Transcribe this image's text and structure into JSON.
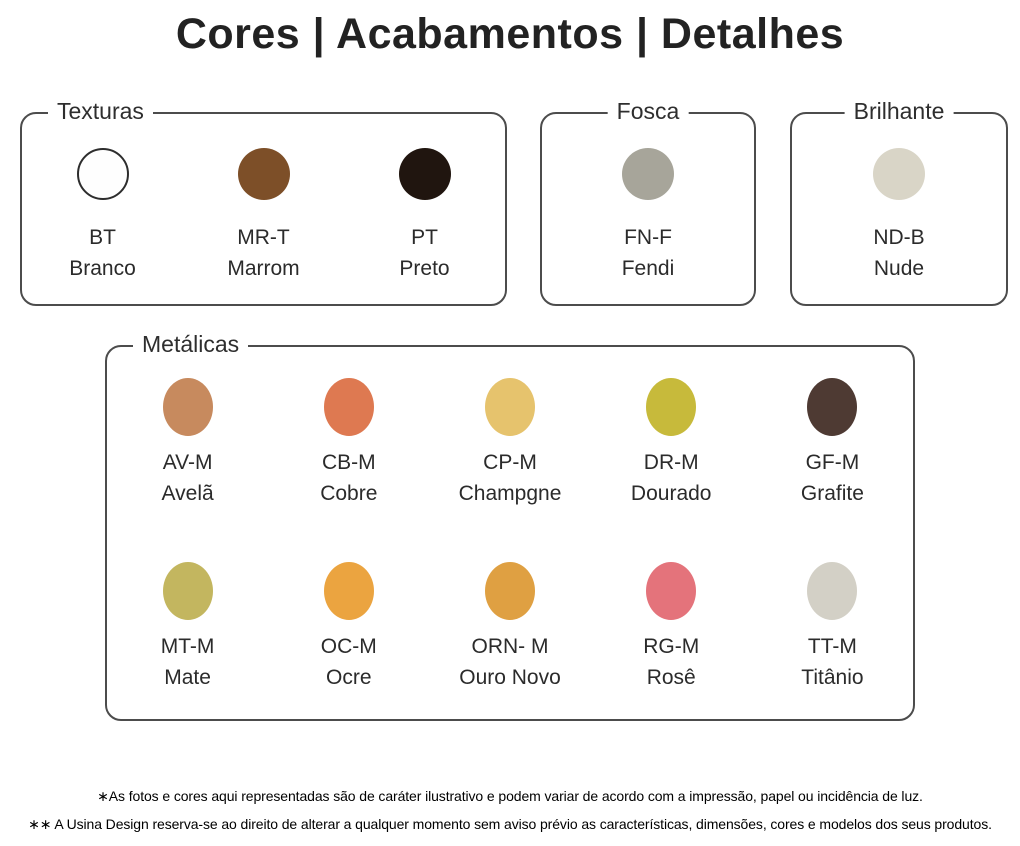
{
  "title": "Cores | Acabamentos | Detalhes",
  "sections": {
    "texturas": {
      "label": "Texturas",
      "swatches": [
        {
          "code": "BT",
          "name": "Branco",
          "color": "#fefefe",
          "outlined": true
        },
        {
          "code": "MR-T",
          "name": "Marrom",
          "color": "#7d4f28"
        },
        {
          "code": "PT",
          "name": "Preto",
          "color": "#20150f"
        }
      ]
    },
    "fosca": {
      "label": "Fosca",
      "swatches": [
        {
          "code": "FN-F",
          "name": "Fendi",
          "color": "#a7a59a"
        }
      ]
    },
    "brilhante": {
      "label": "Brilhante",
      "swatches": [
        {
          "code": "ND-B",
          "name": "Nude",
          "color": "#d9d5c7"
        }
      ]
    },
    "metalicas": {
      "label": "Metálicas",
      "rows": [
        [
          {
            "code": "AV-M",
            "name": "Avelã",
            "color": "#c78a5e"
          },
          {
            "code": "CB-M",
            "name": "Cobre",
            "color": "#de7951"
          },
          {
            "code": "CP-M",
            "name": "Champgne",
            "color": "#e6c36d"
          },
          {
            "code": "DR-M",
            "name": "Dourado",
            "color": "#c7ba3b"
          },
          {
            "code": "GF-M",
            "name": "Grafite",
            "color": "#4e3a33"
          }
        ],
        [
          {
            "code": "MT-M",
            "name": "Mate",
            "color": "#c3b65f"
          },
          {
            "code": "OC-M",
            "name": "Ocre",
            "color": "#eba440"
          },
          {
            "code": "ORN- M",
            "name": "Ouro Novo",
            "color": "#dfa042"
          },
          {
            "code": "RG-M",
            "name": "Rosê",
            "color": "#e4737b"
          },
          {
            "code": "TT-M",
            "name": "Titânio",
            "color": "#d3d0c6"
          }
        ]
      ]
    }
  },
  "footnotes": [
    "∗As fotos e cores aqui representadas são de caráter ilustrativo e podem variar de acordo com a impressão, papel ou incidência de luz.",
    "∗∗ A Usina Design reserva-se ao direito de alterar a qualquer momento sem  aviso prévio  as características, dimensões, cores e modelos dos seus produtos."
  ]
}
